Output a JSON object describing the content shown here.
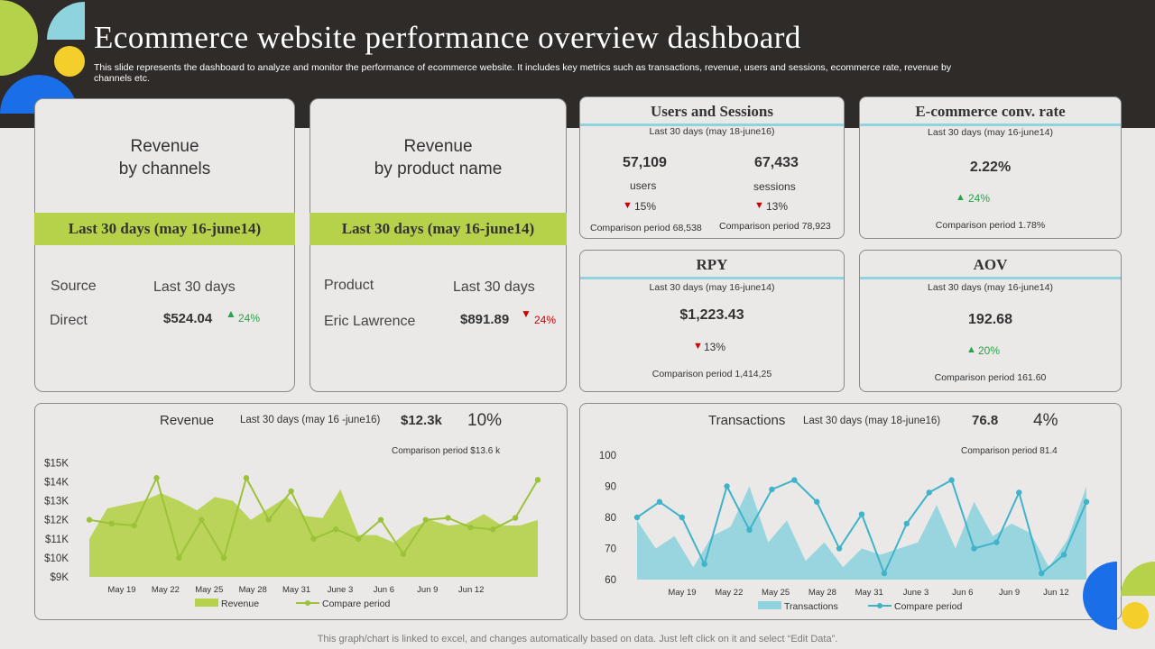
{
  "header": {
    "title": "Ecommerce website performance overview dashboard",
    "subtitle": "This slide represents the dashboard to analyze and monitor the performance of ecommerce website. It includes key metrics such as transactions, revenue, users and sessions, ecommerce rate, revenue by channels etc."
  },
  "colors": {
    "dark": "#2f2b29",
    "green": "#b5d24a",
    "cyan": "#8fd3de",
    "blue": "#1a6fe8",
    "yellow": "#f4ce2a"
  },
  "rev_channels": {
    "title_line1": "Revenue",
    "title_line2": "by channels",
    "period": "Last 30 days (may 16-june14)",
    "col1": "Source",
    "col2": "Last 30 days",
    "row_label": "Direct",
    "row_value": "$524.04",
    "change": "24%"
  },
  "rev_product": {
    "title_line1": "Revenue",
    "title_line2": "by product  name",
    "period": "Last 30 days (may 16-june14)",
    "col1": "Product",
    "col2": "Last 30 days",
    "row_label": "Eric Lawrence",
    "row_value": "$891.89",
    "change": "24%"
  },
  "users_sessions": {
    "title": "Users and Sessions",
    "period": "Last 30 days (may 18-june16)",
    "users_value": "57,109",
    "users_label": "users",
    "users_change": "15%",
    "users_comparison": "Comparison period 68,538",
    "sessions_value": "67,433",
    "sessions_label": "sessions",
    "sessions_change": "13%",
    "sessions_comparison": "Comparison period 78,923"
  },
  "conv_rate": {
    "title": "E-commerce conv. rate",
    "period": "Last 30 days (may 16-june14)",
    "value": "2.22%",
    "change": "24%",
    "comparison": "Comparison period 1.78%"
  },
  "rpy": {
    "title": "RPY",
    "period": "Last 30 days (may 16-june14)",
    "value": "$1,223.43",
    "change": "13%",
    "comparison": "Comparison  period 1,414,25"
  },
  "aov": {
    "title": "AOV",
    "period": "Last 30 days (may 16-june14)",
    "value": "192.68",
    "change": "20%",
    "comparison": "Comparison period 161.60"
  },
  "rev_chart_header": {
    "label": "Revenue",
    "period": "Last 30 days (may 16 -june16)",
    "value": "$12.3k",
    "pct": "10%",
    "comparison": "Comparison period $13.6 k"
  },
  "trans_chart_header": {
    "label": "Transactions",
    "period": "Last 30 days (may 18-june16)",
    "value": "76.8",
    "pct": "4%",
    "comparison": "Comparison period 81.4"
  },
  "footer": "This graph/chart is linked to excel,  and changes automatically based on data. Just left click on it and select “Edit Data”.",
  "chart_data": [
    {
      "type": "area",
      "title": "Revenue",
      "x_labels": [
        "May 19",
        "May 22",
        "May 25",
        "May 28",
        "May 31",
        "June 3",
        "Jun 6",
        "Jun 9",
        "Jun 12"
      ],
      "y_ticks": [
        "$9K",
        "$10K",
        "$11K",
        "$12K",
        "$13K",
        "$14K",
        "$15K"
      ],
      "ylim": [
        9,
        15.3
      ],
      "series": [
        {
          "name": "Revenue",
          "style": "area",
          "color": "#b5d24a",
          "values": [
            11.0,
            12.6,
            12.8,
            13.0,
            13.4,
            13.0,
            12.5,
            13.2,
            13.0,
            12.0,
            12.6,
            13.2,
            12.2,
            12.1,
            13.6,
            11.2,
            11.2,
            10.8,
            11.6,
            12.0,
            11.7,
            11.8,
            12.3,
            11.7,
            11.7,
            12.0
          ]
        },
        {
          "name": "Compare period",
          "style": "line",
          "color": "#9cc23a",
          "values": [
            12.0,
            11.8,
            11.7,
            14.2,
            10.0,
            12.0,
            10.0,
            14.2,
            12.0,
            13.5,
            11.0,
            11.5,
            11.0,
            12.0,
            10.2,
            12.0,
            12.1,
            11.6,
            11.5,
            12.1,
            14.1
          ]
        }
      ]
    },
    {
      "type": "area",
      "title": "Transactions",
      "x_labels": [
        "May 19",
        "May 22",
        "May 25",
        "May 28",
        "May 31",
        "June 3",
        "Jun 6",
        "Jun 9",
        "Jun 12"
      ],
      "y_ticks": [
        "60",
        "70",
        "80",
        "90",
        "100"
      ],
      "ylim": [
        60,
        100
      ],
      "series": [
        {
          "name": "Transactions",
          "style": "area",
          "color": "#8fd3de",
          "values": [
            79,
            70,
            74,
            64,
            74,
            77,
            90,
            72,
            79,
            66,
            72,
            64,
            70,
            68,
            70,
            72,
            84,
            70,
            85,
            74,
            78,
            75,
            64,
            73,
            90
          ]
        },
        {
          "name": "Compare period",
          "style": "line",
          "color": "#3fb3c9",
          "values": [
            80,
            85,
            80,
            65,
            90,
            76,
            89,
            92,
            85,
            70,
            81,
            62,
            78,
            88,
            92,
            70,
            72,
            88,
            62,
            68,
            85
          ]
        }
      ]
    }
  ]
}
